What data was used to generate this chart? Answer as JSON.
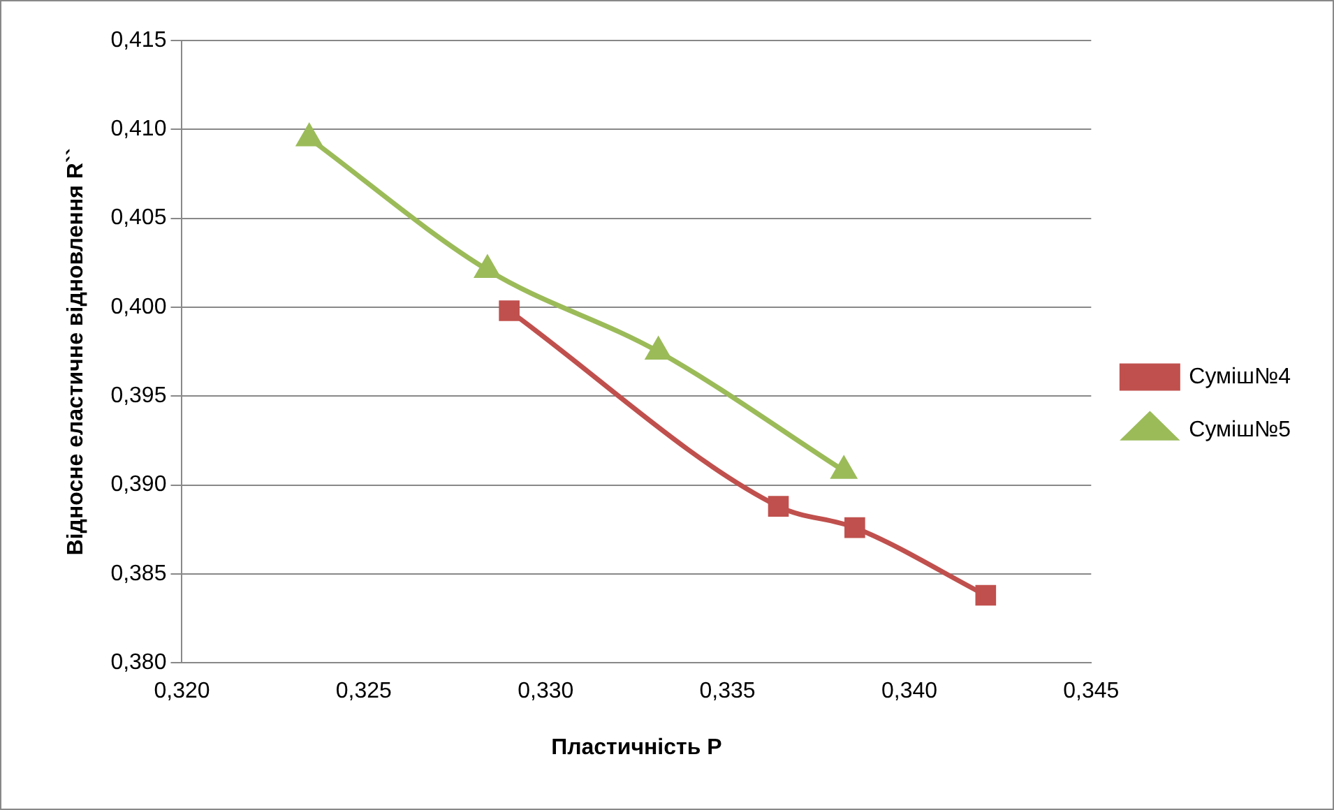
{
  "chart_data": {
    "type": "line",
    "xlabel": "Пластичність P",
    "ylabel": "Відносне еластичне відновлення R``",
    "xlim": [
      0.32,
      0.345
    ],
    "xticks": [
      {
        "value": 0.32,
        "label": "0,320"
      },
      {
        "value": 0.325,
        "label": "0,325"
      },
      {
        "value": 0.33,
        "label": "0,330"
      },
      {
        "value": 0.335,
        "label": "0,335"
      },
      {
        "value": 0.34,
        "label": "0,340"
      },
      {
        "value": 0.345,
        "label": "0,345"
      }
    ],
    "ylim": [
      0.38,
      0.415
    ],
    "yticks": [
      {
        "value": 0.38,
        "label": "0,380"
      },
      {
        "value": 0.385,
        "label": "0,385"
      },
      {
        "value": 0.39,
        "label": "0,390"
      },
      {
        "value": 0.395,
        "label": "0,395"
      },
      {
        "value": 0.4,
        "label": "0,400"
      },
      {
        "value": 0.405,
        "label": "0,405"
      },
      {
        "value": 0.41,
        "label": "0,410"
      },
      {
        "value": 0.415,
        "label": "0,415"
      }
    ],
    "grid": "y",
    "legend": "right",
    "series": [
      {
        "name": "Суміш№4",
        "color": "#c0504d",
        "marker": "square",
        "x": [
          0.329,
          0.3364,
          0.3385,
          0.3421
        ],
        "values": [
          0.3998,
          0.3888,
          0.3876,
          0.3838
        ]
      },
      {
        "name": "Суміш№5",
        "color": "#9bbb59",
        "marker": "triangle",
        "x": [
          0.3235,
          0.3284,
          0.3331,
          0.3382
        ],
        "values": [
          0.4095,
          0.4021,
          0.3975,
          0.3908
        ]
      }
    ]
  }
}
